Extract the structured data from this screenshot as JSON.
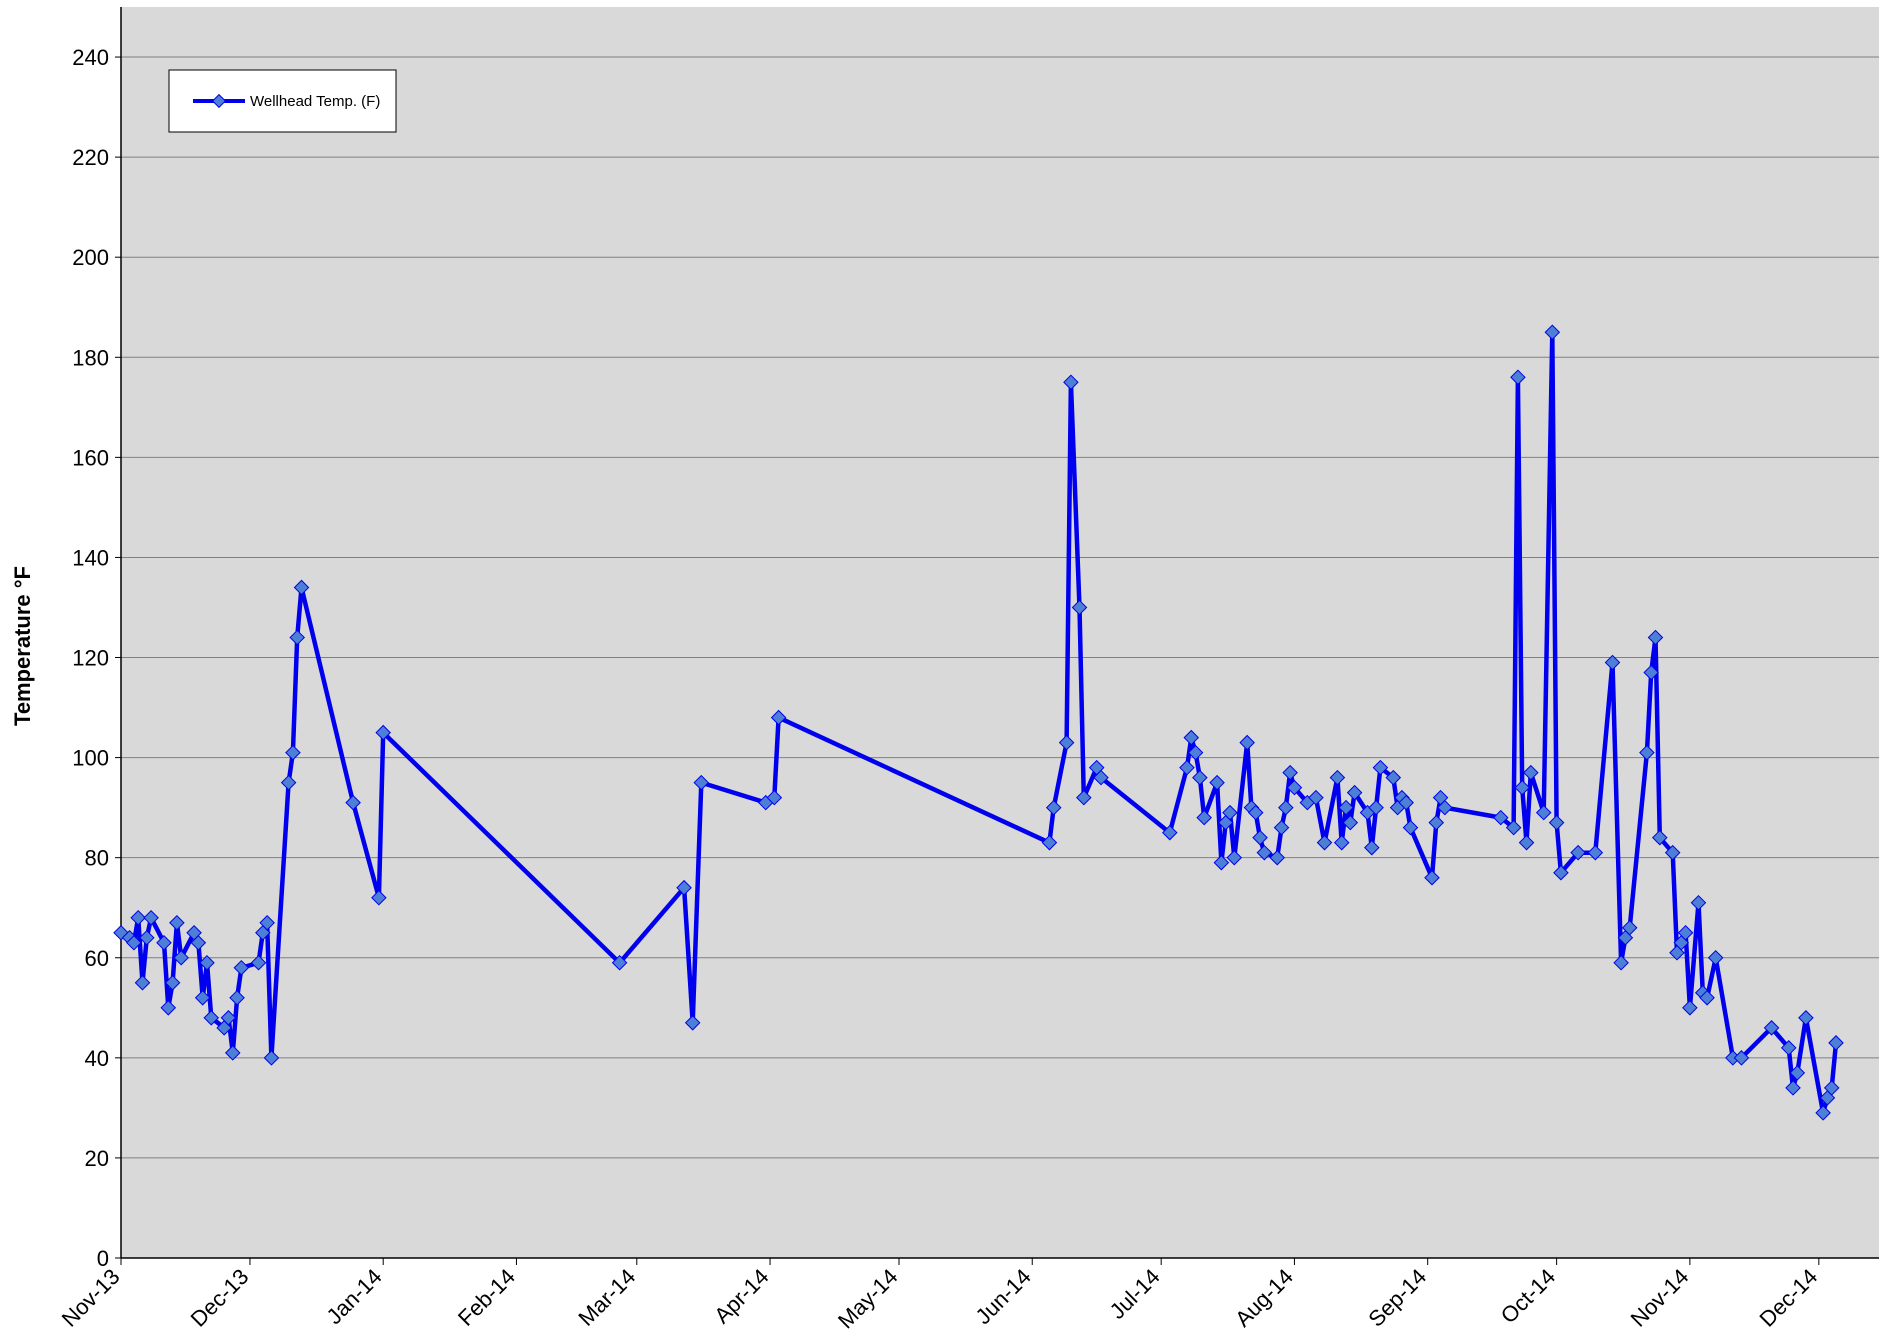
{
  "chart_data": {
    "type": "line",
    "title": "",
    "xlabel": "",
    "ylabel": "Temperature °F",
    "ylim": [
      0,
      250
    ],
    "y_ticks": [
      0,
      20,
      40,
      60,
      80,
      100,
      120,
      140,
      160,
      180,
      200,
      220,
      240
    ],
    "xlim": [
      "2013-11-01",
      "2014-12-15"
    ],
    "x_ticks": [
      {
        "date": "2013-11-01",
        "label": "Nov-13"
      },
      {
        "date": "2013-12-01",
        "label": "Dec-13"
      },
      {
        "date": "2014-01-01",
        "label": "Jan-14"
      },
      {
        "date": "2014-02-01",
        "label": "Feb-14"
      },
      {
        "date": "2014-03-01",
        "label": "Mar-14"
      },
      {
        "date": "2014-04-01",
        "label": "Apr-14"
      },
      {
        "date": "2014-05-01",
        "label": "May-14"
      },
      {
        "date": "2014-06-01",
        "label": "Jun-14"
      },
      {
        "date": "2014-07-01",
        "label": "Jul-14"
      },
      {
        "date": "2014-08-01",
        "label": "Aug-14"
      },
      {
        "date": "2014-09-01",
        "label": "Sep-14"
      },
      {
        "date": "2014-10-01",
        "label": "Oct-14"
      },
      {
        "date": "2014-11-01",
        "label": "Nov-14"
      },
      {
        "date": "2014-12-01",
        "label": "Dec-14"
      }
    ],
    "grid": "horizontal",
    "legend_position": "top-left",
    "colors": {
      "plot_bg": "#d9d9d9",
      "line": "#0000ee",
      "marker": "#4d7fd6",
      "gridline": "#808080"
    },
    "series": [
      {
        "name": "Wellhead Temp. (F)",
        "points": [
          [
            "2013-11-01",
            65
          ],
          [
            "2013-11-03",
            64
          ],
          [
            "2013-11-04",
            63
          ],
          [
            "2013-11-05",
            68
          ],
          [
            "2013-11-06",
            55
          ],
          [
            "2013-11-07",
            64
          ],
          [
            "2013-11-08",
            68
          ],
          [
            "2013-11-11",
            63
          ],
          [
            "2013-11-12",
            50
          ],
          [
            "2013-11-13",
            55
          ],
          [
            "2013-11-14",
            67
          ],
          [
            "2013-11-15",
            60
          ],
          [
            "2013-11-18",
            65
          ],
          [
            "2013-11-19",
            63
          ],
          [
            "2013-11-20",
            52
          ],
          [
            "2013-11-21",
            59
          ],
          [
            "2013-11-22",
            48
          ],
          [
            "2013-11-25",
            46
          ],
          [
            "2013-11-26",
            48
          ],
          [
            "2013-11-27",
            41
          ],
          [
            "2013-11-28",
            52
          ],
          [
            "2013-11-29",
            58
          ],
          [
            "2013-12-03",
            59
          ],
          [
            "2013-12-04",
            65
          ],
          [
            "2013-12-05",
            67
          ],
          [
            "2013-12-06",
            40
          ],
          [
            "2013-12-10",
            95
          ],
          [
            "2013-12-11",
            101
          ],
          [
            "2013-12-12",
            124
          ],
          [
            "2013-12-13",
            134
          ],
          [
            "2013-12-25",
            91
          ],
          [
            "2013-12-31",
            72
          ],
          [
            "2014-01-01",
            105
          ],
          [
            "2014-02-25",
            59
          ],
          [
            "2014-03-12",
            74
          ],
          [
            "2014-03-14",
            47
          ],
          [
            "2014-03-16",
            95
          ],
          [
            "2014-03-31",
            91
          ],
          [
            "2014-04-02",
            92
          ],
          [
            "2014-04-03",
            108
          ],
          [
            "2014-06-05",
            83
          ],
          [
            "2014-06-06",
            90
          ],
          [
            "2014-06-09",
            103
          ],
          [
            "2014-06-10",
            175
          ],
          [
            "2014-06-12",
            130
          ],
          [
            "2014-06-13",
            92
          ],
          [
            "2014-06-16",
            98
          ],
          [
            "2014-06-17",
            96
          ],
          [
            "2014-07-03",
            85
          ],
          [
            "2014-07-07",
            98
          ],
          [
            "2014-07-08",
            104
          ],
          [
            "2014-07-09",
            101
          ],
          [
            "2014-07-10",
            96
          ],
          [
            "2014-07-11",
            88
          ],
          [
            "2014-07-14",
            95
          ],
          [
            "2014-07-15",
            79
          ],
          [
            "2014-07-16",
            87
          ],
          [
            "2014-07-17",
            89
          ],
          [
            "2014-07-18",
            80
          ],
          [
            "2014-07-21",
            103
          ],
          [
            "2014-07-22",
            90
          ],
          [
            "2014-07-23",
            89
          ],
          [
            "2014-07-24",
            84
          ],
          [
            "2014-07-25",
            81
          ],
          [
            "2014-07-28",
            80
          ],
          [
            "2014-07-29",
            86
          ],
          [
            "2014-07-30",
            90
          ],
          [
            "2014-07-31",
            97
          ],
          [
            "2014-08-01",
            94
          ],
          [
            "2014-08-04",
            91
          ],
          [
            "2014-08-06",
            92
          ],
          [
            "2014-08-08",
            83
          ],
          [
            "2014-08-11",
            96
          ],
          [
            "2014-08-12",
            83
          ],
          [
            "2014-08-13",
            90
          ],
          [
            "2014-08-14",
            87
          ],
          [
            "2014-08-15",
            93
          ],
          [
            "2014-08-18",
            89
          ],
          [
            "2014-08-19",
            82
          ],
          [
            "2014-08-20",
            90
          ],
          [
            "2014-08-21",
            98
          ],
          [
            "2014-08-24",
            96
          ],
          [
            "2014-08-25",
            90
          ],
          [
            "2014-08-26",
            92
          ],
          [
            "2014-08-27",
            91
          ],
          [
            "2014-08-28",
            86
          ],
          [
            "2014-09-02",
            76
          ],
          [
            "2014-09-03",
            87
          ],
          [
            "2014-09-04",
            92
          ],
          [
            "2014-09-05",
            90
          ],
          [
            "2014-09-18",
            88
          ],
          [
            "2014-09-21",
            86
          ],
          [
            "2014-09-22",
            176
          ],
          [
            "2014-09-23",
            94
          ],
          [
            "2014-09-24",
            83
          ],
          [
            "2014-09-25",
            97
          ],
          [
            "2014-09-28",
            89
          ],
          [
            "2014-09-30",
            185
          ],
          [
            "2014-10-01",
            87
          ],
          [
            "2014-10-02",
            77
          ],
          [
            "2014-10-06",
            81
          ],
          [
            "2014-10-10",
            81
          ],
          [
            "2014-10-14",
            119
          ],
          [
            "2014-10-16",
            59
          ],
          [
            "2014-10-17",
            64
          ],
          [
            "2014-10-18",
            66
          ],
          [
            "2014-10-22",
            101
          ],
          [
            "2014-10-23",
            117
          ],
          [
            "2014-10-24",
            124
          ],
          [
            "2014-10-25",
            84
          ],
          [
            "2014-10-28",
            81
          ],
          [
            "2014-10-29",
            61
          ],
          [
            "2014-10-30",
            63
          ],
          [
            "2014-10-31",
            65
          ],
          [
            "2014-11-01",
            50
          ],
          [
            "2014-11-03",
            71
          ],
          [
            "2014-11-04",
            53
          ],
          [
            "2014-11-05",
            52
          ],
          [
            "2014-11-07",
            60
          ],
          [
            "2014-11-11",
            40
          ],
          [
            "2014-11-13",
            40
          ],
          [
            "2014-11-20",
            46
          ],
          [
            "2014-11-24",
            42
          ],
          [
            "2014-11-25",
            34
          ],
          [
            "2014-11-26",
            37
          ],
          [
            "2014-11-28",
            48
          ],
          [
            "2014-12-02",
            29
          ],
          [
            "2014-12-03",
            32
          ],
          [
            "2014-12-04",
            34
          ],
          [
            "2014-12-05",
            43
          ]
        ]
      }
    ]
  }
}
